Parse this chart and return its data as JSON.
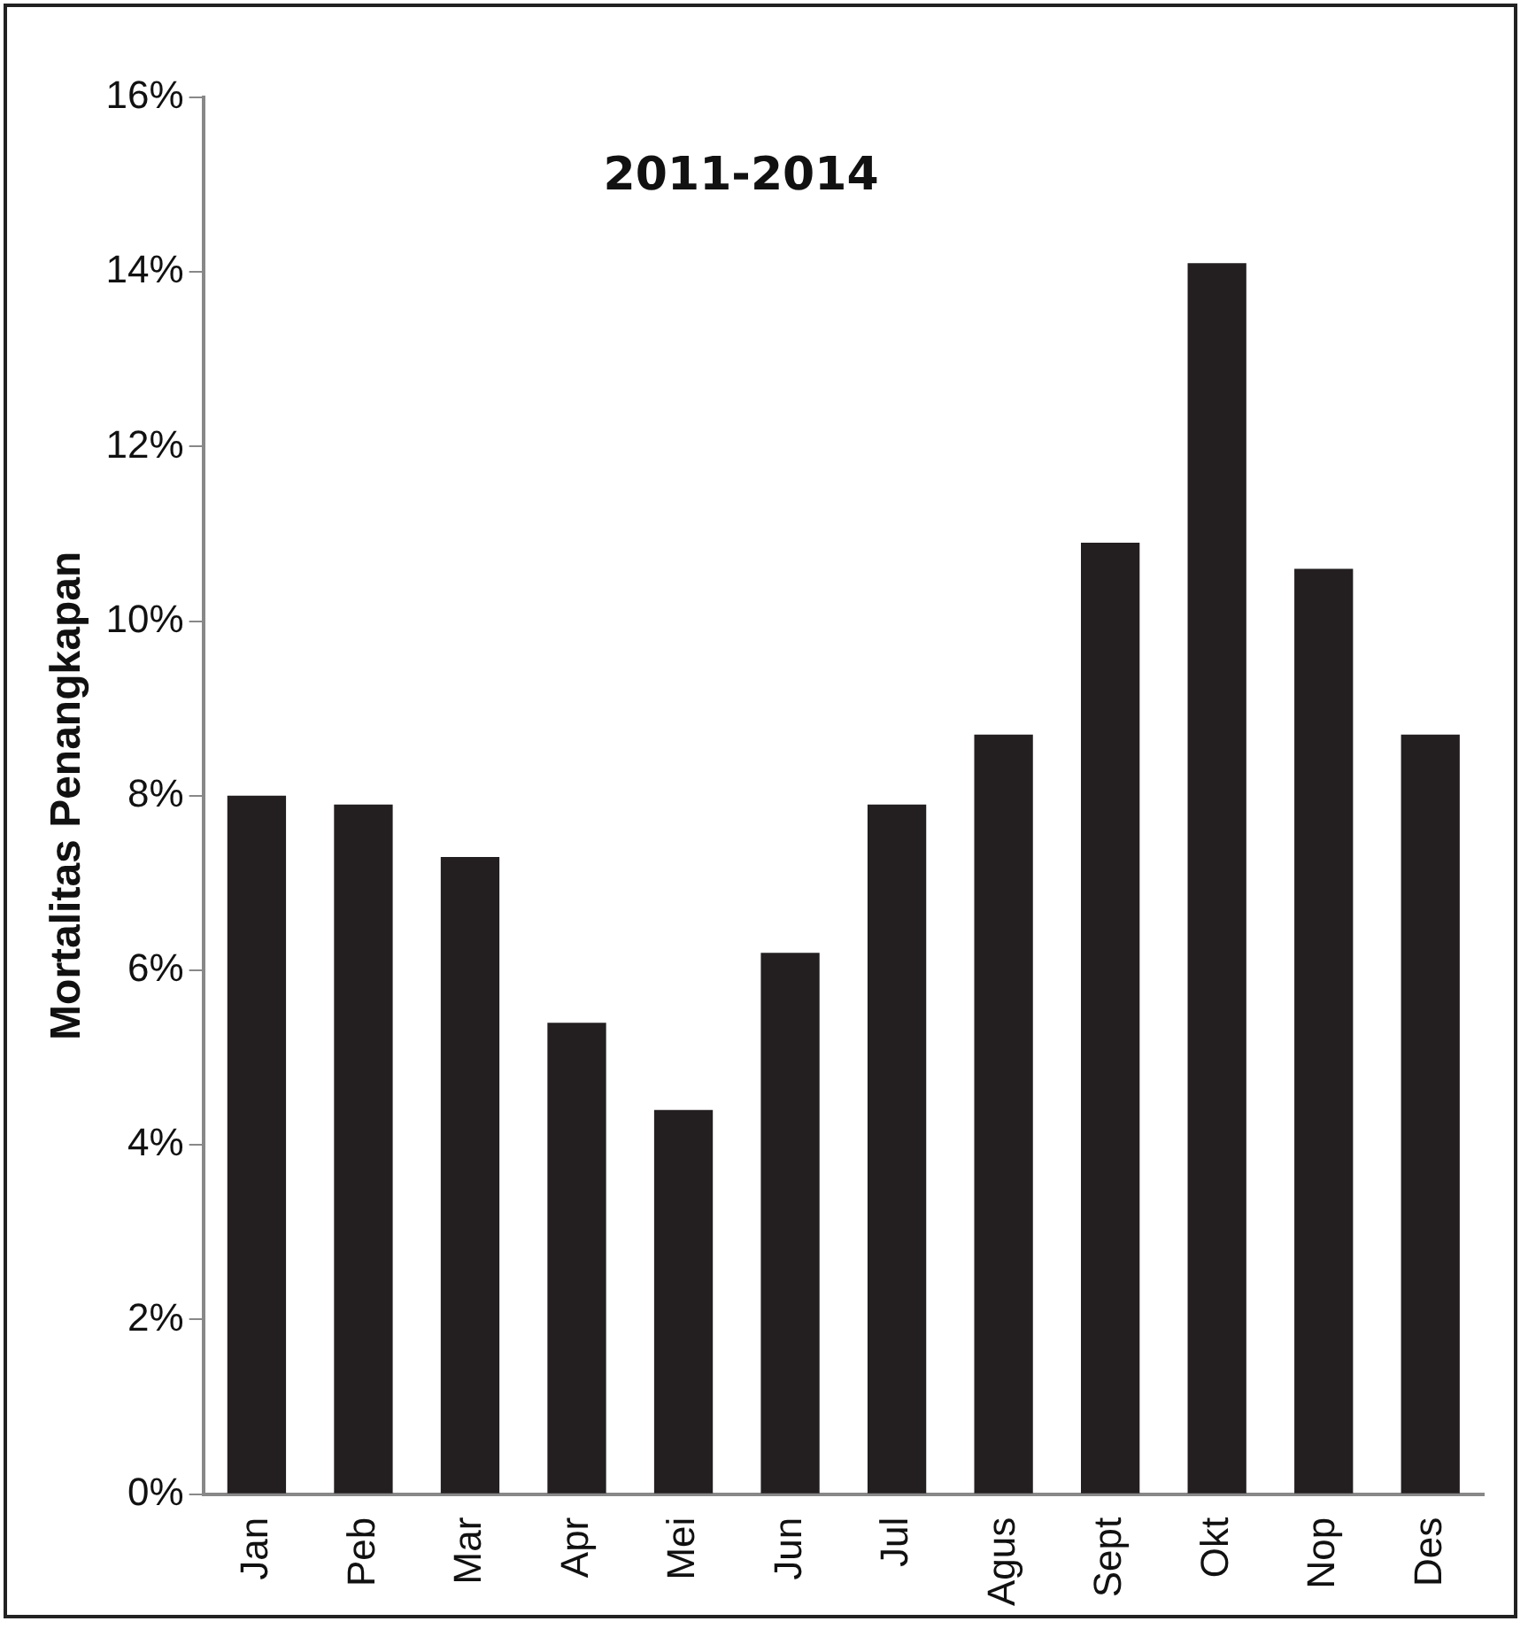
{
  "chart_data": {
    "type": "bar",
    "title": "2011-2014",
    "ylabel": "Mortalitas Penangkapan",
    "categories": [
      "Jan",
      "Peb",
      "Mar",
      "Apr",
      "Mei",
      "Jun",
      "Jul",
      "Agus",
      "Sept",
      "Okt",
      "Nop",
      "Des"
    ],
    "values": [
      8.0,
      7.9,
      7.3,
      5.4,
      4.4,
      6.2,
      7.9,
      8.7,
      10.9,
      14.1,
      10.6,
      8.7
    ],
    "color": "#231f20",
    "ylim": [
      0,
      16
    ],
    "yticks": [
      {
        "value": 0,
        "label": "0%"
      },
      {
        "value": 2,
        "label": "2%"
      },
      {
        "value": 4,
        "label": "4%"
      },
      {
        "value": 6,
        "label": "6%"
      },
      {
        "value": 8,
        "label": "8%"
      },
      {
        "value": 10,
        "label": "10%"
      },
      {
        "value": 12,
        "label": "12%"
      },
      {
        "value": 14,
        "label": "14%"
      },
      {
        "value": 16,
        "label": "16%"
      }
    ],
    "grid": false,
    "legend": false
  }
}
